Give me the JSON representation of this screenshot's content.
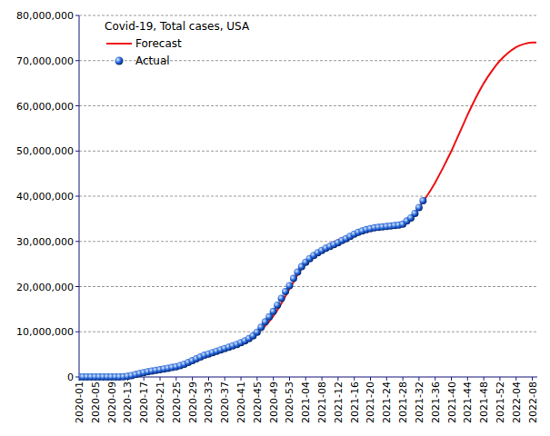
{
  "chart_data": {
    "type": "line",
    "title": "Covid-19, Total cases, USA",
    "categories": [
      "2020-01",
      null,
      null,
      null,
      "2020-05",
      null,
      null,
      null,
      "2020-09",
      null,
      null,
      null,
      "2020-13",
      null,
      null,
      null,
      "2020-17",
      null,
      null,
      null,
      "2020-21",
      null,
      null,
      null,
      "2020-25",
      null,
      null,
      null,
      "2020-29",
      null,
      null,
      null,
      "2020-33",
      null,
      null,
      null,
      "2020-37",
      null,
      null,
      null,
      "2020-41",
      null,
      null,
      null,
      "2020-45",
      null,
      null,
      null,
      "2020-49",
      null,
      null,
      null,
      "2020-53",
      null,
      null,
      null,
      "2021-04",
      null,
      null,
      null,
      "2021-08",
      null,
      null,
      null,
      "2021-12",
      null,
      null,
      null,
      "2021-16",
      null,
      null,
      null,
      "2021-20",
      null,
      null,
      null,
      "2021-24",
      null,
      null,
      null,
      "2021-28",
      null,
      null,
      null,
      "2021-32",
      null,
      null,
      null,
      "2021-36",
      null,
      null,
      null,
      "2021-40",
      null,
      null,
      null,
      "2021-44",
      null,
      null,
      null,
      "2021-48",
      null,
      null,
      null,
      "2021-52",
      null,
      null,
      null,
      "2022-04",
      null,
      null,
      null,
      "2022-08",
      null
    ],
    "series": [
      {
        "name": "Forecast",
        "type": "line",
        "color": "#ee1111",
        "marker": "none",
        "line_style": "solid",
        "values": [
          0,
          0,
          0,
          0,
          0,
          0,
          0,
          0,
          0,
          1000,
          4000,
          30000,
          140000,
          310000,
          530000,
          740000,
          960000,
          1160000,
          1330000,
          1480000,
          1620000,
          1780000,
          1930000,
          2090000,
          2260000,
          2500000,
          2820000,
          3200000,
          3600000,
          4000000,
          4400000,
          4800000,
          5100000,
          5400000,
          5700000,
          6000000,
          6300000,
          6600000,
          6900000,
          7200000,
          7600000,
          8000000,
          8500000,
          9100000,
          9900000,
          10400000,
          11300000,
          12300000,
          13500000,
          14800000,
          16300000,
          17900000,
          19500000,
          21000000,
          22600000,
          24000000,
          25200000,
          26200000,
          27000000,
          27700000,
          28300000,
          28900000,
          29400000,
          29900000,
          30300000,
          30700000,
          31100000,
          31500000,
          31900000,
          32200000,
          32500000,
          32700000,
          32900000,
          33000000,
          33100000,
          33200000,
          33300000,
          33400000,
          33500000,
          33700000,
          34000000,
          34500000,
          35300000,
          36300000,
          37500000,
          38800000,
          40100000,
          41500000,
          43000000,
          44700000,
          46400000,
          48200000,
          50000000,
          52000000,
          54000000,
          56000000,
          58000000,
          59900000,
          61700000,
          63400000,
          65000000,
          66400000,
          67700000,
          68900000,
          70000000,
          70900000,
          71700000,
          72400000,
          73000000,
          73400000,
          73700000,
          73900000,
          74000000,
          74000000
        ]
      },
      {
        "name": "Actual",
        "type": "scatter",
        "color": "#1f5fd6",
        "marker": "circle",
        "line_style": "none",
        "values": [
          0,
          0,
          0,
          0,
          0,
          0,
          0,
          0,
          0,
          1000,
          4000,
          30000,
          140000,
          310000,
          530000,
          740000,
          960000,
          1160000,
          1330000,
          1480000,
          1620000,
          1780000,
          1930000,
          2090000,
          2260000,
          2500000,
          2820000,
          3200000,
          3600000,
          4000000,
          4400000,
          4800000,
          5100000,
          5400000,
          5700000,
          6000000,
          6300000,
          6600000,
          6900000,
          7200000,
          7600000,
          8000000,
          8500000,
          9100000,
          9900000,
          11000000,
          12200000,
          13300000,
          14500000,
          15900000,
          17400000,
          18900000,
          20200000,
          21800000,
          23200000,
          24400000,
          25400000,
          26200000,
          26900000,
          27500000,
          28000000,
          28500000,
          28900000,
          29300000,
          29700000,
          30200000,
          30600000,
          31100000,
          31600000,
          32000000,
          32300000,
          32600000,
          32800000,
          33000000,
          33100000,
          33200000,
          33300000,
          33400000,
          33500000,
          33600000,
          33800000,
          34500000,
          35200000,
          36200000,
          37500000,
          39000000,
          null,
          null,
          null,
          null,
          null,
          null,
          null,
          null,
          null,
          null,
          null,
          null,
          null,
          null,
          null,
          null,
          null,
          null,
          null,
          null,
          null,
          null,
          null,
          null,
          null,
          null,
          null,
          null
        ]
      }
    ],
    "ylim": [
      0,
      80000000
    ],
    "yticks": [
      0,
      {
        "value": 10000000,
        "label": "10,000,000"
      },
      {
        "value": 20000000,
        "label": "20,000,000"
      },
      {
        "value": 30000000,
        "label": "30,000,000"
      },
      {
        "value": 40000000,
        "label": "40,000,000"
      },
      {
        "value": 50000000,
        "label": "50,000,000"
      },
      {
        "value": 60000000,
        "label": "60,000,000"
      },
      {
        "value": 70000000,
        "label": "70,000,000"
      },
      {
        "value": 80000000,
        "label": "80,000,000"
      }
    ],
    "grid": true,
    "legend": "upper-left"
  }
}
